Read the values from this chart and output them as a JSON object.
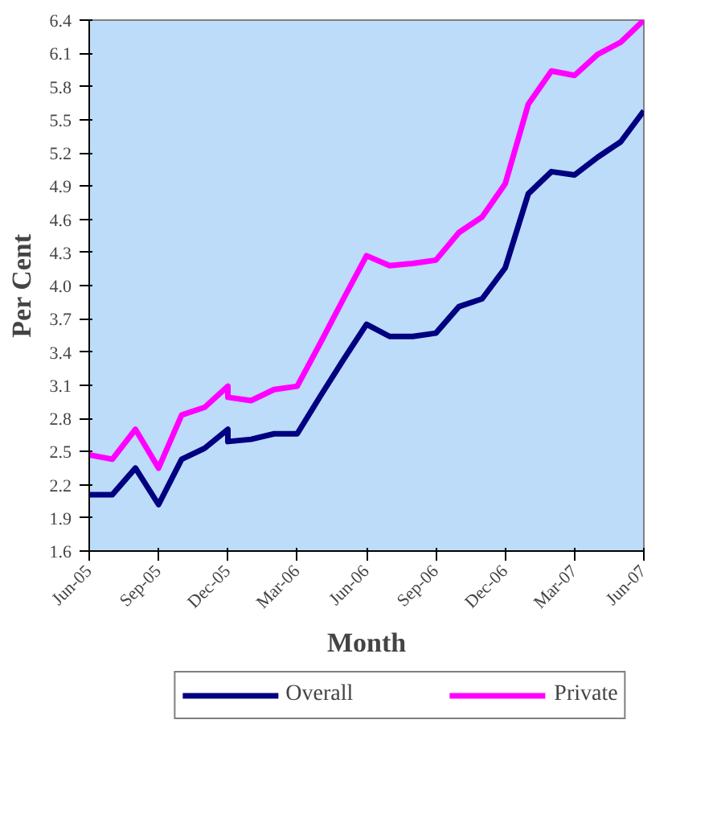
{
  "chart_data": {
    "type": "line",
    "xlabel": "Month",
    "ylabel": "Per Cent",
    "x": [
      "2005-06",
      "2005-07",
      "2005-08",
      "2005-09",
      "2005-10",
      "2005-11",
      "2005-12",
      "2005-12",
      "2006-01",
      "2006-02",
      "2006-03",
      "2006-04",
      "2006-05",
      "2006-06",
      "2006-07",
      "2006-08",
      "2006-09",
      "2006-10",
      "2006-11",
      "2006-12",
      "2007-01",
      "2007-02",
      "2007-03",
      "2007-04",
      "2007-05",
      "2007-06"
    ],
    "series": [
      {
        "name": "Overall",
        "color": "#000080",
        "values": [
          2.11,
          2.11,
          2.35,
          2.02,
          2.43,
          2.53,
          2.7,
          2.59,
          2.61,
          2.66,
          2.66,
          3.0,
          3.33,
          3.65,
          3.54,
          3.54,
          3.57,
          3.81,
          3.88,
          4.16,
          4.83,
          5.03,
          5.0,
          5.16,
          5.3,
          5.58
        ]
      },
      {
        "name": "Private",
        "color": "#ff00ff",
        "values": [
          2.47,
          2.43,
          2.7,
          2.35,
          2.83,
          2.9,
          3.09,
          2.99,
          2.96,
          3.06,
          3.09,
          3.48,
          3.88,
          4.27,
          4.18,
          4.2,
          4.23,
          4.48,
          4.62,
          4.92,
          5.64,
          5.94,
          5.9,
          6.09,
          6.2,
          6.4
        ]
      }
    ],
    "xlim": [
      "2005-06",
      "2007-06"
    ],
    "xticks": [
      {
        "value": "2005-06",
        "label": "Jun-05"
      },
      {
        "value": "2005-09",
        "label": "Sep-05"
      },
      {
        "value": "2005-12",
        "label": "Dec-05"
      },
      {
        "value": "2006-03",
        "label": "Mar-06"
      },
      {
        "value": "2006-06",
        "label": "Jun-06"
      },
      {
        "value": "2006-09",
        "label": "Sep-06"
      },
      {
        "value": "2006-12",
        "label": "Dec-06"
      },
      {
        "value": "2007-03",
        "label": "Mar-07"
      },
      {
        "value": "2007-06",
        "label": "Jun-07"
      }
    ],
    "ylim": [
      1.6,
      6.4
    ],
    "yticks": [
      1.6,
      1.9,
      2.2,
      2.5,
      2.8,
      3.1,
      3.4,
      3.7,
      {
        "value": 4,
        "label": "4.0"
      },
      4.3,
      4.6,
      4.9,
      5.2,
      5.5,
      5.8,
      6.1,
      6.4
    ],
    "grid": false,
    "legend": "bottom",
    "marker": "none",
    "line_style": "solid"
  }
}
